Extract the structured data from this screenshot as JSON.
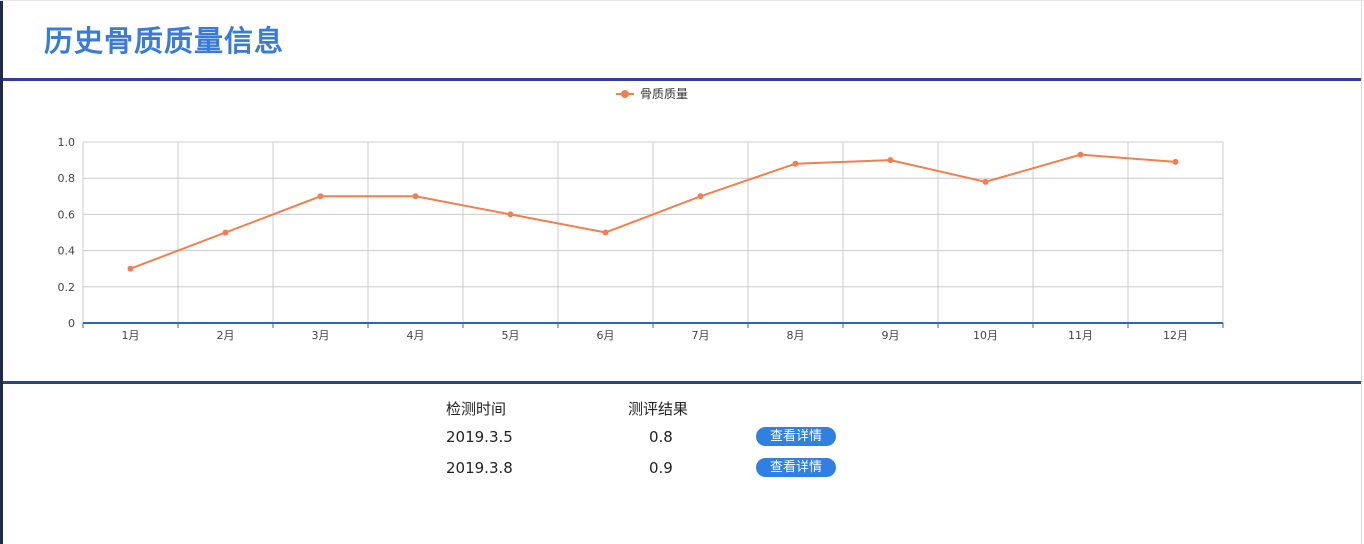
{
  "header": {
    "title": "历史骨质质量信息"
  },
  "chart_data": {
    "type": "line",
    "legend": "骨质质量",
    "legend_position": "top-center",
    "categories": [
      "1月",
      "2月",
      "3月",
      "4月",
      "5月",
      "6月",
      "7月",
      "8月",
      "9月",
      "10月",
      "11月",
      "12月"
    ],
    "series": [
      {
        "name": "骨质质量",
        "values": [
          0.3,
          0.5,
          0.7,
          0.7,
          0.6,
          0.5,
          0.7,
          0.88,
          0.9,
          0.78,
          0.93,
          0.89
        ]
      }
    ],
    "y_ticks": [
      "0",
      "0.2",
      "0.4",
      "0.6",
      "0.8",
      "1.0"
    ],
    "ylim": [
      0,
      1
    ],
    "grid": true,
    "line_color": "#f08050",
    "axis_color": "#2a6ab0"
  },
  "table": {
    "headers": {
      "time": "检测时间",
      "result": "测评结果"
    },
    "rows": [
      {
        "time": "2019.3.5",
        "result": "0.8",
        "action": "查看详情"
      },
      {
        "time": "2019.3.8",
        "result": "0.9",
        "action": "查看详情"
      }
    ]
  }
}
